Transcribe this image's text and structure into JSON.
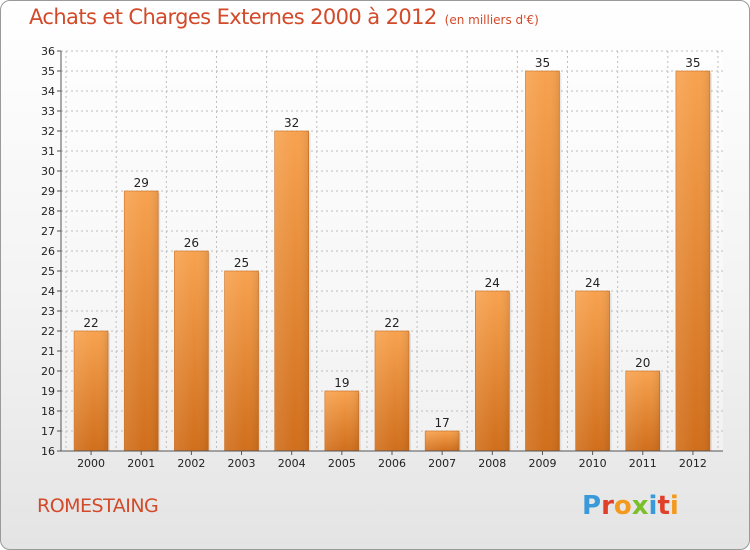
{
  "header": {
    "title": "Achats et Charges Externes 2000 à 2012",
    "subtitle": "(en milliers d'€)"
  },
  "footer": {
    "commune": "ROMESTAING",
    "logo": {
      "text": "Proxiti",
      "letters": [
        {
          "char": "P",
          "color": "#3a9ad9"
        },
        {
          "char": "r",
          "color": "#e0402a"
        },
        {
          "char": "o",
          "color": "#f39a1e"
        },
        {
          "char": "x",
          "color": "#7bbf2a"
        },
        {
          "char": "i",
          "color": "#3a9ad9"
        },
        {
          "char": "t",
          "color": "#e0402a"
        },
        {
          "char": "i",
          "color": "#f39a1e"
        }
      ]
    }
  },
  "colors": {
    "title": "#d24a29",
    "bar_light": "#f7a24f",
    "bar_dark": "#d06e1b",
    "grid": "#bdbdbd"
  },
  "chart_data": {
    "type": "bar",
    "title": "Achats et Charges Externes 2000 à 2012",
    "subtitle": "(en milliers d'€)",
    "xlabel": "",
    "ylabel": "",
    "categories": [
      "2000",
      "2001",
      "2002",
      "2003",
      "2004",
      "2005",
      "2006",
      "2007",
      "2008",
      "2009",
      "2010",
      "2011",
      "2012"
    ],
    "values": [
      22,
      29,
      26,
      25,
      32,
      19,
      22,
      17,
      24,
      35,
      24,
      20,
      35
    ],
    "ylim": [
      16,
      36
    ],
    "yticks": [
      16,
      17,
      18,
      19,
      20,
      21,
      22,
      23,
      24,
      25,
      26,
      27,
      28,
      29,
      30,
      31,
      32,
      33,
      34,
      35,
      36
    ],
    "grid": true,
    "legend": "none"
  }
}
